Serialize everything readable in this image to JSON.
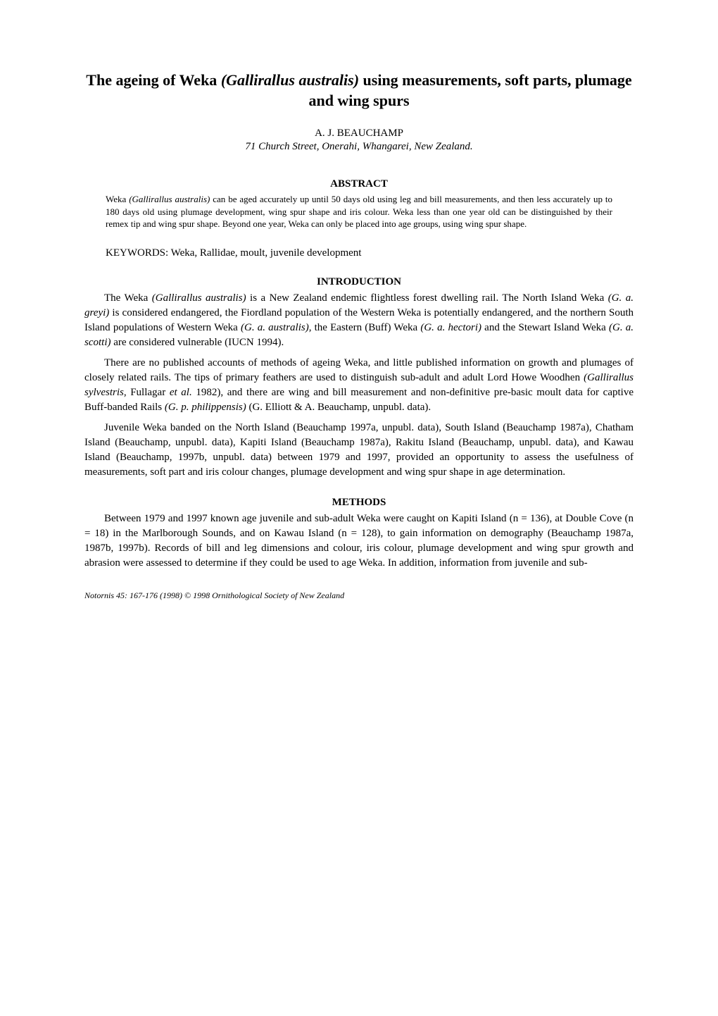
{
  "title_part1": "The ageing of Weka ",
  "title_species": "(Gallirallus australis)",
  "title_part2": " using measurements, soft parts, plumage and wing spurs",
  "author": "A. J. BEAUCHAMP",
  "address": "71 Church Street, Onerahi, Whangarei, New Zealand.",
  "abstract_heading": "ABSTRACT",
  "abstract_text_1": "Weka ",
  "abstract_species": "(Gallirallus australis)",
  "abstract_text_2": " can be aged accurately up until 50 days old using leg and bill measurements, and then less accurately up to 180 days old using plumage development, wing spur shape and iris colour. Weka less than one year old can be distinguished by their remex tip and wing spur shape. Beyond one year, Weka can only be placed into age groups, using wing spur shape.",
  "keywords_label": "KEYWORDS:",
  "keywords_text": " Weka, Rallidae, moult, juvenile development",
  "intro_heading": "INTRODUCTION",
  "intro_p1_a": "The Weka ",
  "intro_p1_sp1": "(Gallirallus australis)",
  "intro_p1_b": " is a New Zealand endemic flightless forest dwelling rail. The North Island Weka ",
  "intro_p1_sp2": "(G. a. greyi)",
  "intro_p1_c": " is considered endangered, the Fiordland population of the Western Weka is potentially endangered, and the northern South Island populations of Western Weka ",
  "intro_p1_sp3": "(G. a. australis)",
  "intro_p1_d": ", the Eastern (Buff) Weka ",
  "intro_p1_sp4": "(G. a. hectori)",
  "intro_p1_e": " and the Stewart Island Weka ",
  "intro_p1_sp5": "(G. a. scotti)",
  "intro_p1_f": " are considered vulnerable (IUCN 1994).",
  "intro_p2_a": "There are no published accounts of methods of ageing Weka, and little published information on growth and plumages of closely related rails. The tips of primary feathers are used to distinguish sub-adult and adult Lord Howe Woodhen ",
  "intro_p2_sp1": "(Gallirallus sylvestris",
  "intro_p2_b": ", Fullagar ",
  "intro_p2_etal": "et al.",
  "intro_p2_c": " 1982), and there are wing and bill measurement and non-definitive pre-basic moult data for captive Buff-banded Rails ",
  "intro_p2_sp2": "(G. p. philippensis)",
  "intro_p2_d": " (G. Elliott & A. Beauchamp, unpubl. data).",
  "intro_p3": "Juvenile Weka banded on the North Island (Beauchamp 1997a, unpubl. data), South Island (Beauchamp 1987a), Chatham Island (Beauchamp, unpubl. data), Kapiti Island (Beauchamp 1987a), Rakitu Island (Beauchamp, unpubl. data), and Kawau Island (Beauchamp, 1997b, unpubl. data) between 1979 and 1997, provided an opportunity to assess the usefulness of measurements, soft part and iris colour changes, plumage development and wing spur shape in age determination.",
  "methods_heading": "METHODS",
  "methods_p1": "Between 1979 and 1997 known age juvenile and sub-adult Weka were caught on Kapiti Island (n = 136), at Double Cove (n = 18) in the Marlborough Sounds, and on Kawau Island (n = 128), to gain information on demography (Beauchamp 1987a, 1987b, 1997b). Records of bill and leg dimensions and colour, iris colour, plumage development and wing spur growth and abrasion were assessed to determine if they could be used to age Weka. In addition, information from juvenile and sub-",
  "footer": "Notornis 45: 167-176 (1998) © 1998 Ornithological Society of New Zealand"
}
